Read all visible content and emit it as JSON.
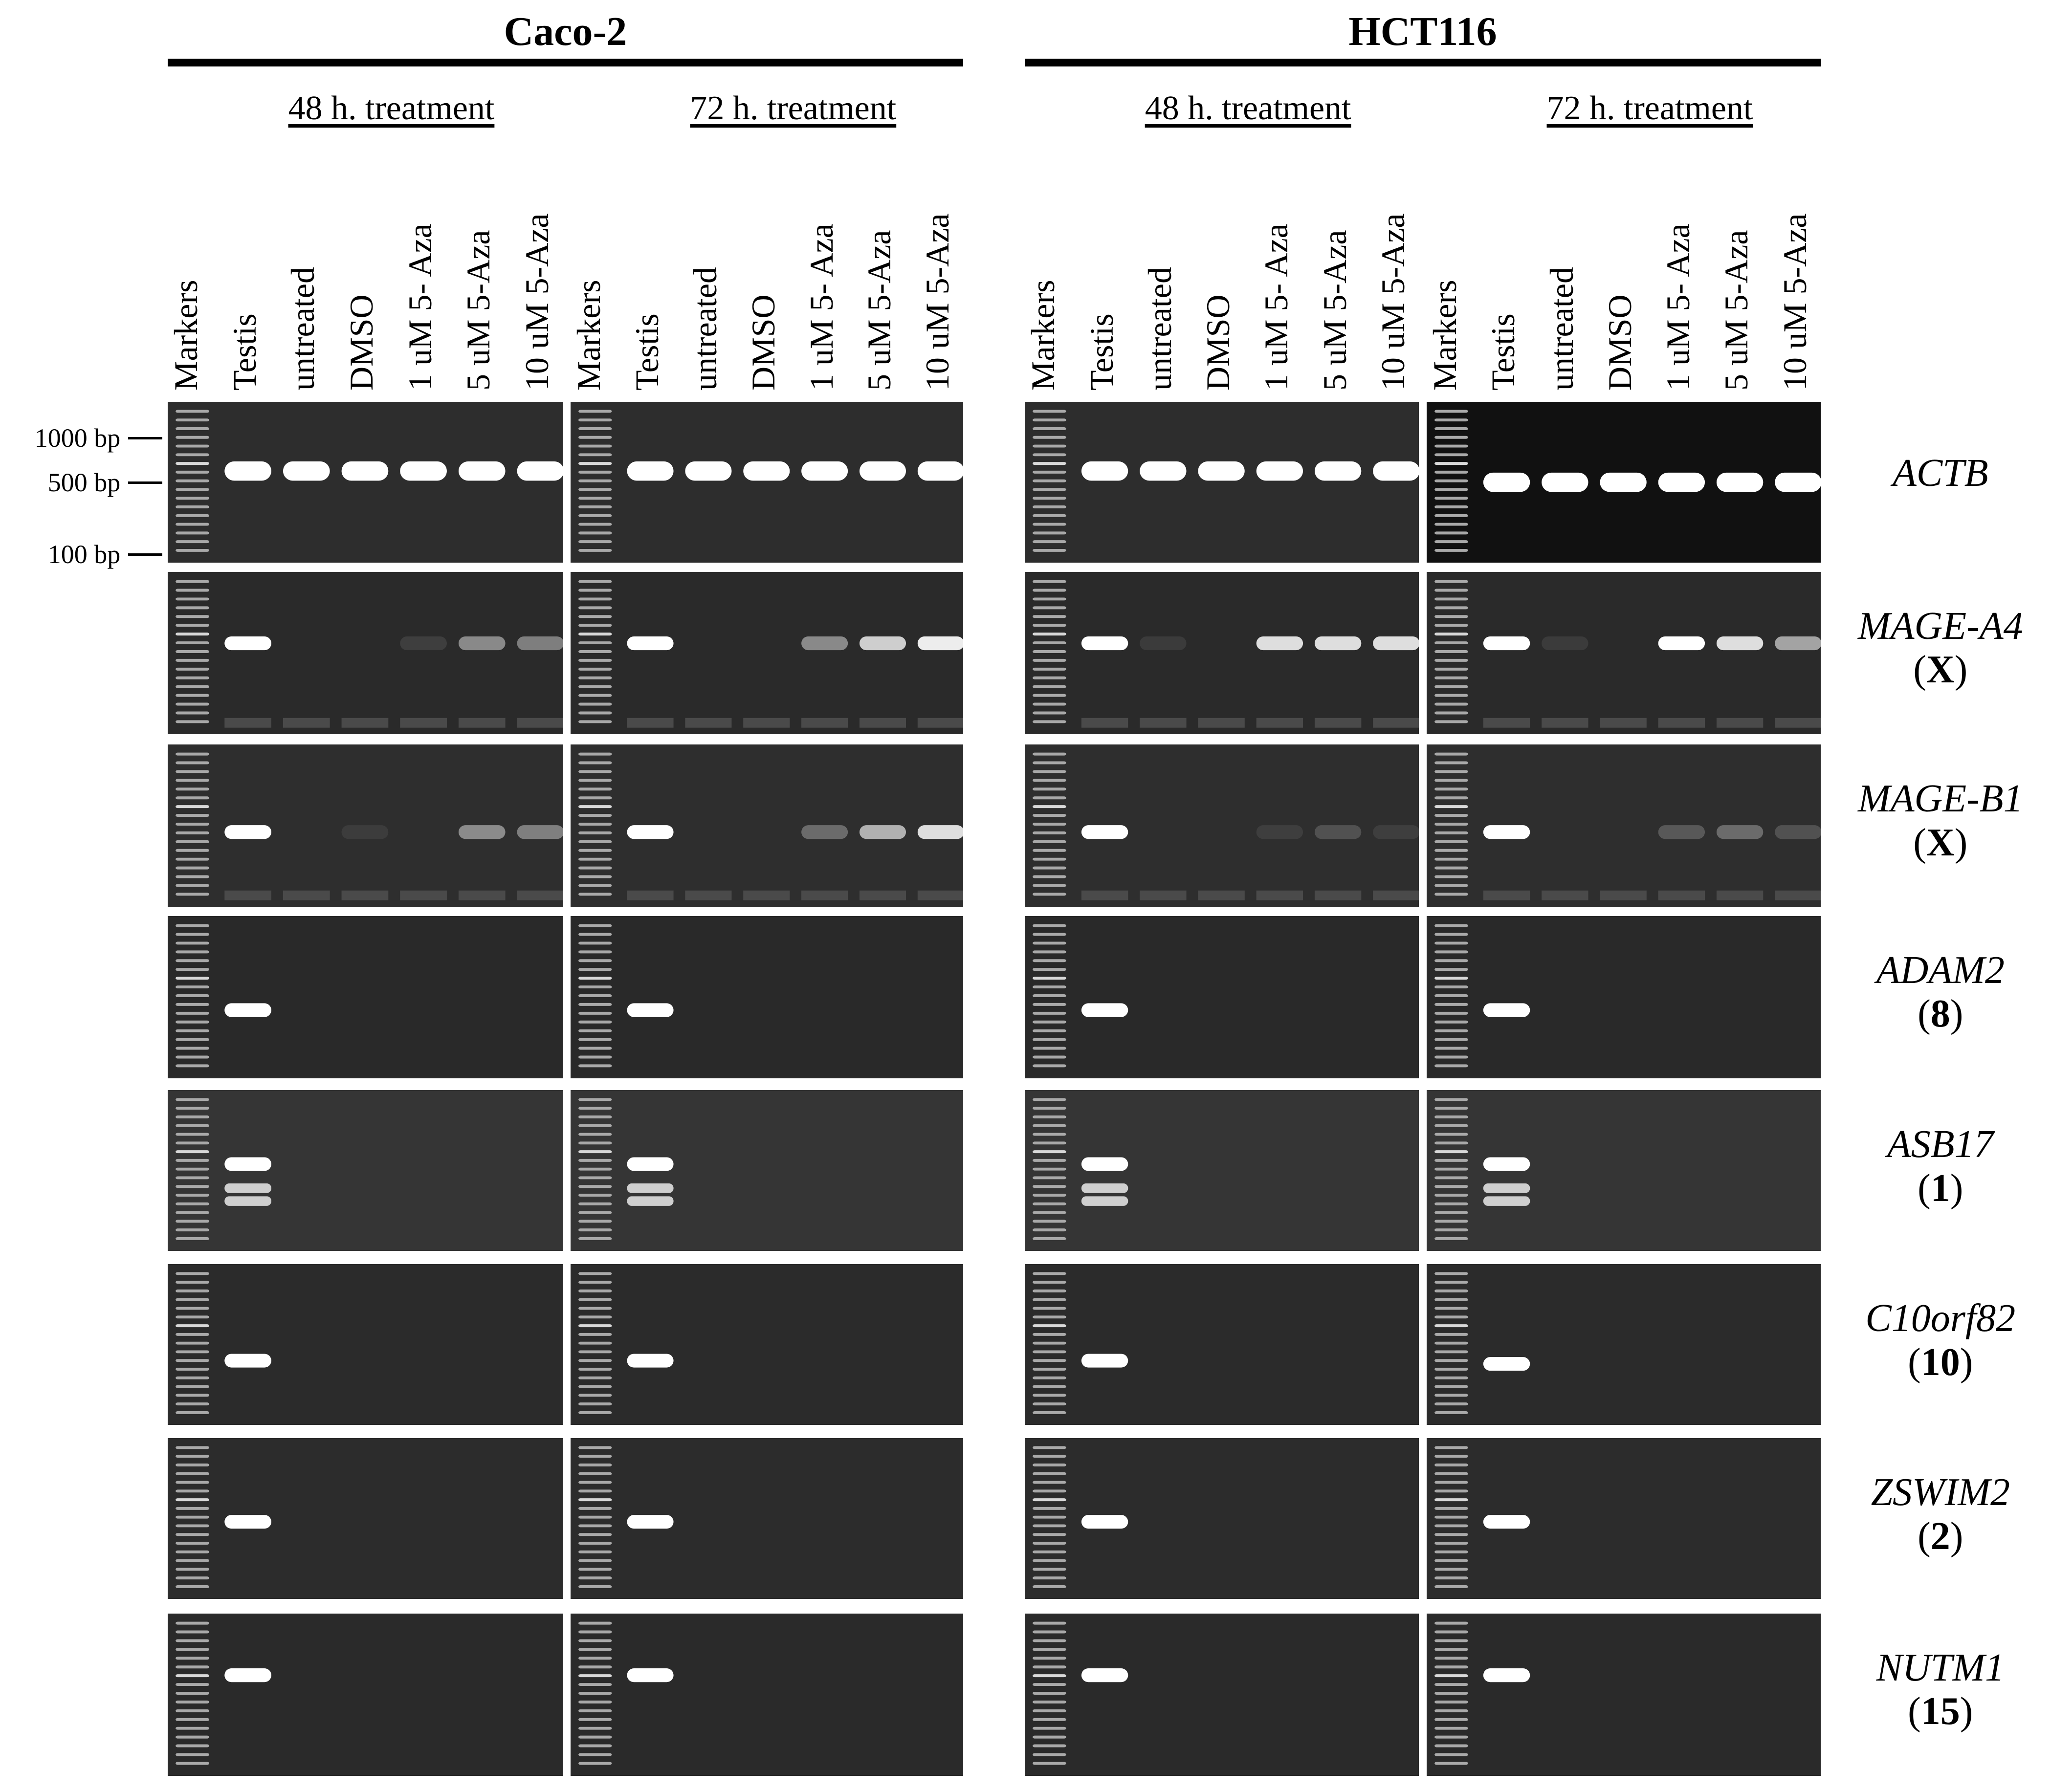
{
  "cell_lines": [
    {
      "name": "Caco-2",
      "treatments": [
        "48 h. treatment",
        "72 h. treatment"
      ]
    },
    {
      "name": "HCT116",
      "treatments": [
        "48 h. treatment",
        "72 h. treatment"
      ]
    }
  ],
  "lanes": [
    "Markers",
    "Testis",
    "untreated",
    "DMSO",
    "1 uM 5- Aza",
    "5 uM 5-Aza",
    "10 uM 5-Aza"
  ],
  "size_markers": [
    "1000 bp",
    "500 bp",
    "100 bp"
  ],
  "genes": [
    {
      "name": "ACTB",
      "chrom": ""
    },
    {
      "name": "MAGE-A4",
      "chrom": "X"
    },
    {
      "name": "MAGE-B1",
      "chrom": "X"
    },
    {
      "name": "ADAM2",
      "chrom": "8"
    },
    {
      "name": "ASB17",
      "chrom": "1"
    },
    {
      "name": "C10orf82",
      "chrom": "10"
    },
    {
      "name": "ZSWIM2",
      "chrom": "2"
    },
    {
      "name": "NUTM1",
      "chrom": "15"
    }
  ],
  "band_intensity": {
    "columns": [
      "Caco-2 48 h",
      "Caco-2 72 h",
      "HCT116 48 h",
      "HCT116 72 h"
    ],
    "lanes": [
      "Testis",
      "untreated",
      "DMSO",
      "1 uM 5- Aza",
      "5 uM 5-Aza",
      "10 uM 5-Aza"
    ],
    "ACTB": [
      [
        1,
        1,
        1,
        1,
        1,
        1
      ],
      [
        1,
        1,
        1,
        1,
        1,
        1
      ],
      [
        1,
        1,
        1,
        1,
        1,
        1
      ],
      [
        1,
        1,
        1,
        1,
        1,
        1
      ]
    ],
    "MAGE-A4": [
      [
        1,
        0,
        0,
        0.2,
        0.6,
        0.55
      ],
      [
        1,
        0,
        0,
        0.6,
        0.85,
        0.95
      ],
      [
        1,
        0.15,
        0,
        0.9,
        0.9,
        0.9
      ],
      [
        1,
        0.15,
        0,
        1,
        0.9,
        0.7
      ]
    ],
    "MAGE-B1": [
      [
        1,
        0,
        0.05,
        0,
        0.6,
        0.55
      ],
      [
        1,
        0,
        0,
        0.45,
        0.75,
        0.9
      ],
      [
        1,
        0,
        0,
        0.15,
        0.3,
        0.15
      ],
      [
        1,
        0,
        0,
        0.35,
        0.45,
        0.3
      ]
    ],
    "ADAM2": [
      [
        1,
        0,
        0,
        0,
        0,
        0
      ],
      [
        1,
        0,
        0,
        0,
        0,
        0
      ],
      [
        1,
        0,
        0,
        0,
        0,
        0
      ],
      [
        1,
        0,
        0,
        0,
        0,
        0
      ]
    ],
    "ASB17": [
      [
        1,
        0,
        0,
        0,
        0,
        0
      ],
      [
        1,
        0,
        0,
        0,
        0,
        0
      ],
      [
        1,
        0,
        0,
        0,
        0,
        0
      ],
      [
        1,
        0,
        0,
        0,
        0,
        0
      ]
    ],
    "C10orf82": [
      [
        1,
        0,
        0,
        0,
        0,
        0
      ],
      [
        1,
        0,
        0,
        0,
        0,
        0
      ],
      [
        1,
        0,
        0,
        0,
        0,
        0
      ],
      [
        1,
        0,
        0,
        0,
        0,
        0
      ]
    ],
    "ZSWIM2": [
      [
        1,
        0,
        0,
        0,
        0,
        0
      ],
      [
        1,
        0,
        0,
        0,
        0,
        0
      ],
      [
        1,
        0,
        0,
        0,
        0,
        0
      ],
      [
        1,
        0,
        0,
        0,
        0,
        0
      ]
    ],
    "NUTM1": [
      [
        1,
        0,
        0,
        0,
        0,
        0
      ],
      [
        1,
        0,
        0,
        0,
        0,
        0
      ],
      [
        1,
        0,
        0,
        0,
        0,
        0
      ],
      [
        1,
        0,
        0,
        0,
        0,
        0
      ]
    ]
  }
}
